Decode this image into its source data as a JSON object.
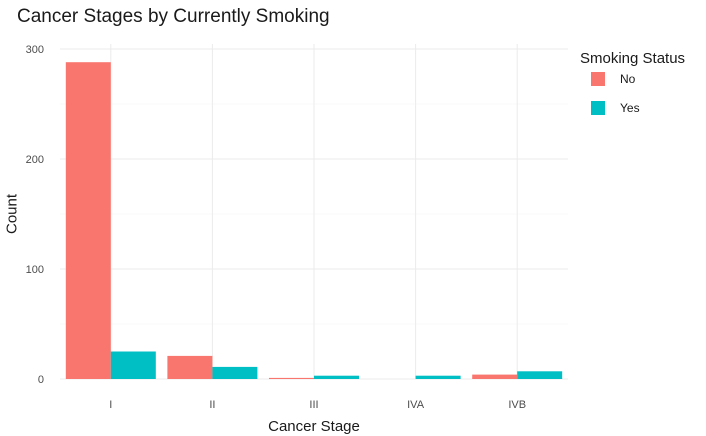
{
  "chart_data": {
    "type": "bar",
    "title": "Cancer Stages by Currently Smoking",
    "xlabel": "Cancer Stage",
    "ylabel": "Count",
    "categories": [
      "I",
      "II",
      "III",
      "IVA",
      "IVB"
    ],
    "series": [
      {
        "name": "No",
        "color": "#F8766D",
        "values": [
          288,
          21,
          1,
          0,
          4
        ]
      },
      {
        "name": "Yes",
        "color": "#00BFC4",
        "values": [
          25,
          11,
          3,
          3,
          7
        ]
      }
    ],
    "ylim": [
      0,
      300
    ],
    "yticks": [
      0,
      100,
      200,
      300
    ],
    "grid": true,
    "legend": {
      "title": "Smoking Status",
      "position": "right"
    }
  }
}
